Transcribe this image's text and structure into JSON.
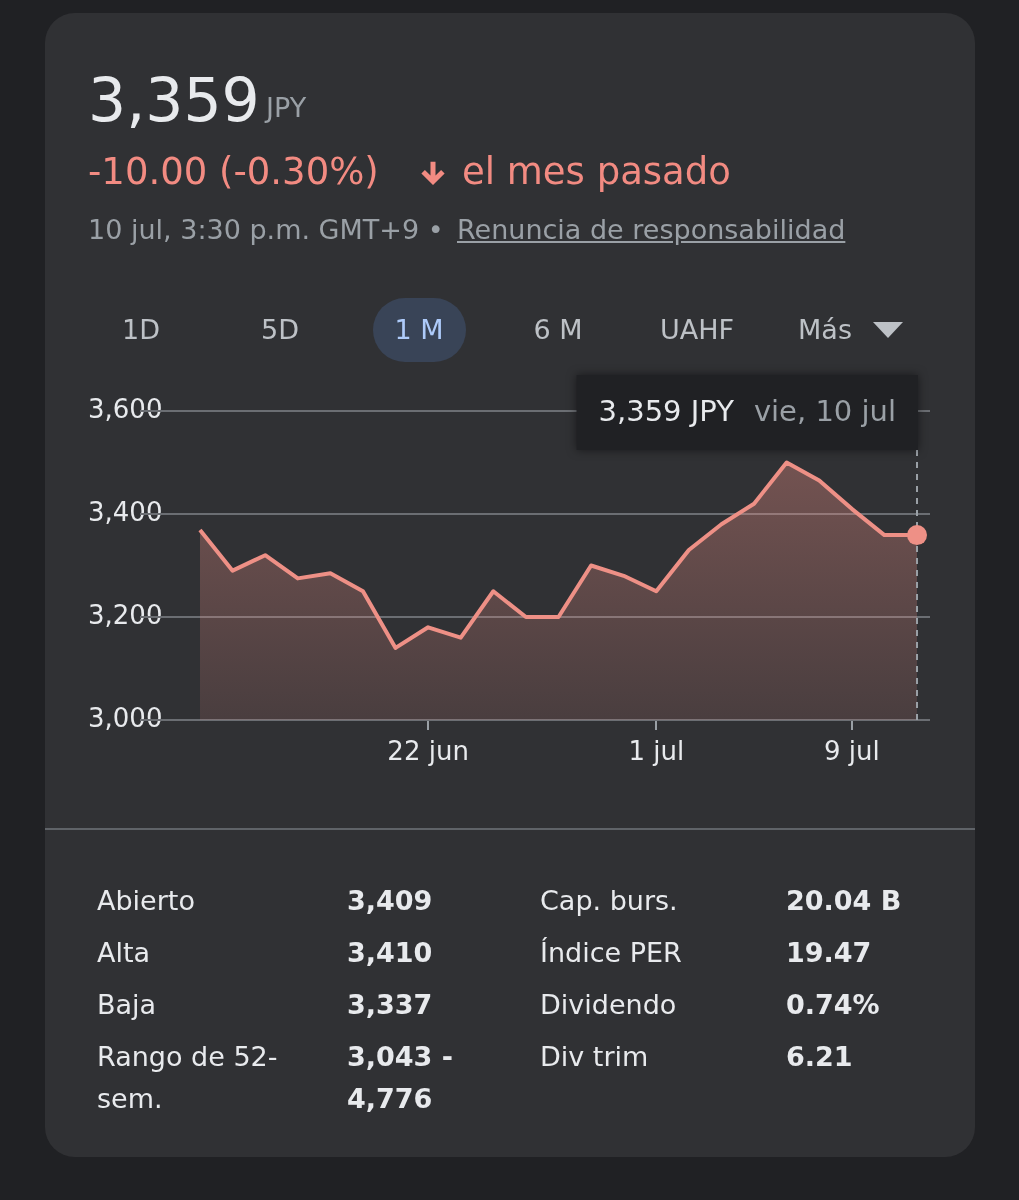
{
  "chart_data": {
    "type": "area",
    "title": "3,359",
    "categories": [
      null,
      null,
      null,
      null,
      null,
      null,
      null,
      "22 jun",
      null,
      null,
      null,
      null,
      null,
      null,
      "1 jul",
      null,
      null,
      null,
      null,
      null,
      "9 jul",
      null,
      null
    ],
    "series": [
      {
        "color": "#ee9086",
        "values": [
          3369,
          3290,
          3320,
          3275,
          3285,
          3250,
          3140,
          3180,
          3160,
          3250,
          3200,
          3200,
          3300,
          3280,
          3250,
          3330,
          3380,
          3420,
          3500,
          3465,
          3410,
          3359,
          3359
        ]
      }
    ],
    "ylim": [
      3000,
      3600
    ],
    "yticks": [
      {
        "value": 3000,
        "label": "3,000"
      },
      {
        "value": 3200,
        "label": "3,200"
      },
      {
        "value": 3400,
        "label": "3,400"
      },
      {
        "value": 3600,
        "label": "3,600"
      }
    ],
    "grid": "y",
    "legend": false,
    "marker": "none",
    "line_style": "solid",
    "annotations": [
      "JPY",
      "-10.00 (-0.30%)",
      "el mes pasado",
      "10 jul, 3:30 p.m. GMT+9 •",
      "Renuncia de responsabilidad",
      "1D",
      "5D",
      "1 M",
      "6 M",
      "UAHF",
      "Más",
      "3,359 JPY",
      "vie, 10 jul",
      "Abierto",
      "3,409",
      "Alta",
      "3,410",
      "Baja",
      "3,337",
      "Rango de 52-sem.",
      "3,043 - 4,776",
      "Cap. burs.",
      "20.04 B",
      "Índice PER",
      "19.47",
      "Dividendo",
      "0.74%",
      "Div trim",
      "6.21"
    ]
  }
}
